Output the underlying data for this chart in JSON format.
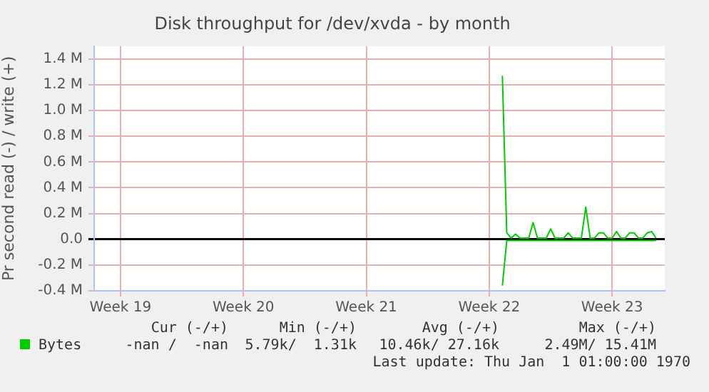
{
  "chart_data": {
    "type": "line",
    "title": "Disk throughput for /dev/xvda - by month",
    "ylabel": "Pr second read (-) / write (+)",
    "categories": [
      null,
      null,
      null,
      null,
      null,
      null,
      "Week 19",
      null,
      null,
      null,
      null,
      null,
      null,
      null,
      null,
      null,
      null,
      null,
      null,
      null,
      null,
      null,
      null,
      null,
      null,
      null,
      null,
      null,
      null,
      null,
      null,
      null,
      null,
      null,
      "Week 20",
      null,
      null,
      null,
      null,
      null,
      null,
      null,
      null,
      null,
      null,
      null,
      null,
      null,
      null,
      null,
      null,
      null,
      null,
      null,
      null,
      null,
      null,
      null,
      null,
      null,
      null,
      null,
      "Week 21",
      null,
      null,
      null,
      null,
      null,
      null,
      null,
      null,
      null,
      null,
      null,
      null,
      null,
      null,
      null,
      null,
      null,
      null,
      null,
      null,
      null,
      null,
      null,
      null,
      null,
      null,
      null,
      "Week 22",
      null,
      null,
      null,
      null,
      null,
      null,
      null,
      null,
      null,
      null,
      null,
      null,
      null,
      null,
      null,
      null,
      null,
      null,
      null,
      null,
      null,
      null,
      null,
      null,
      null,
      null,
      null,
      "Week 23",
      null,
      null,
      null,
      null,
      null,
      null,
      null,
      null,
      null,
      null,
      null,
      null
    ],
    "ylim": [
      -400000,
      1500000
    ],
    "yticks": [
      {
        "value": -400000,
        "label": "-0.4 M"
      },
      {
        "value": -200000,
        "label": "-0.2 M"
      },
      {
        "value": 0,
        "label": "0.0"
      },
      {
        "value": 200000,
        "label": "0.2 M"
      },
      {
        "value": 400000,
        "label": "0.4 M"
      },
      {
        "value": 600000,
        "label": "0.6 M"
      },
      {
        "value": 800000,
        "label": "0.8 M"
      },
      {
        "value": 1000000,
        "label": "1.0 M"
      },
      {
        "value": 1200000,
        "label": "1.2 M"
      },
      {
        "value": 1400000,
        "label": "1.4 M"
      }
    ],
    "grid": true,
    "legend": "bottom",
    "marker": "none",
    "series": [
      {
        "name": "Bytes",
        "color": "#00cc00",
        "values": [
          null,
          null,
          null,
          null,
          null,
          null,
          null,
          null,
          null,
          null,
          null,
          null,
          null,
          null,
          null,
          null,
          null,
          null,
          null,
          null,
          null,
          null,
          null,
          null,
          null,
          null,
          null,
          null,
          null,
          null,
          null,
          null,
          null,
          null,
          null,
          null,
          null,
          null,
          null,
          null,
          null,
          null,
          null,
          null,
          null,
          null,
          null,
          null,
          null,
          null,
          null,
          null,
          null,
          null,
          null,
          null,
          null,
          null,
          null,
          null,
          null,
          null,
          null,
          null,
          null,
          null,
          null,
          null,
          null,
          null,
          null,
          null,
          null,
          null,
          null,
          null,
          null,
          null,
          null,
          null,
          null,
          null,
          null,
          null,
          null,
          null,
          null,
          null,
          null,
          null,
          null,
          null,
          null,
          1270000,
          50000,
          10000,
          40000,
          10000,
          10000,
          10000,
          130000,
          10000,
          10000,
          10000,
          80000,
          10000,
          10000,
          10000,
          50000,
          10000,
          10000,
          10000,
          250000,
          10000,
          10000,
          50000,
          50000,
          10000,
          10000,
          60000,
          10000,
          10000,
          50000,
          50000,
          10000,
          10000,
          50000,
          60000,
          10000,
          null,
          null
        ]
      },
      {
        "color": "#00cc00",
        "values": [
          null,
          null,
          null,
          null,
          null,
          null,
          null,
          null,
          null,
          null,
          null,
          null,
          null,
          null,
          null,
          null,
          null,
          null,
          null,
          null,
          null,
          null,
          null,
          null,
          null,
          null,
          null,
          null,
          null,
          null,
          null,
          null,
          null,
          null,
          null,
          null,
          null,
          null,
          null,
          null,
          null,
          null,
          null,
          null,
          null,
          null,
          null,
          null,
          null,
          null,
          null,
          null,
          null,
          null,
          null,
          null,
          null,
          null,
          null,
          null,
          null,
          null,
          null,
          null,
          null,
          null,
          null,
          null,
          null,
          null,
          null,
          null,
          null,
          null,
          null,
          null,
          null,
          null,
          null,
          null,
          null,
          null,
          null,
          null,
          null,
          null,
          null,
          null,
          null,
          null,
          null,
          null,
          null,
          -360000,
          -10000,
          -10000,
          -10000,
          -10000,
          -10000,
          -10000,
          -10000,
          -10000,
          -10000,
          -10000,
          -10000,
          -10000,
          -10000,
          -10000,
          -10000,
          -10000,
          -10000,
          -10000,
          -10000,
          -10000,
          -10000,
          -10000,
          -10000,
          -10000,
          -10000,
          -10000,
          -10000,
          -10000,
          -10000,
          -10000,
          -10000,
          -10000,
          -10000,
          -10000,
          -10000,
          null,
          null
        ]
      }
    ],
    "annotations": [
      "Cur (-/+)",
      "Min (-/+)",
      "Avg (-/+)",
      "Max (-/+)",
      "-nan /  -nan",
      "5.79k/  1.31k",
      "10.46k/ 27.16k",
      "2.49M/ 15.41M",
      "Last update: Thu Jan  1 01:00:00 1970"
    ]
  }
}
